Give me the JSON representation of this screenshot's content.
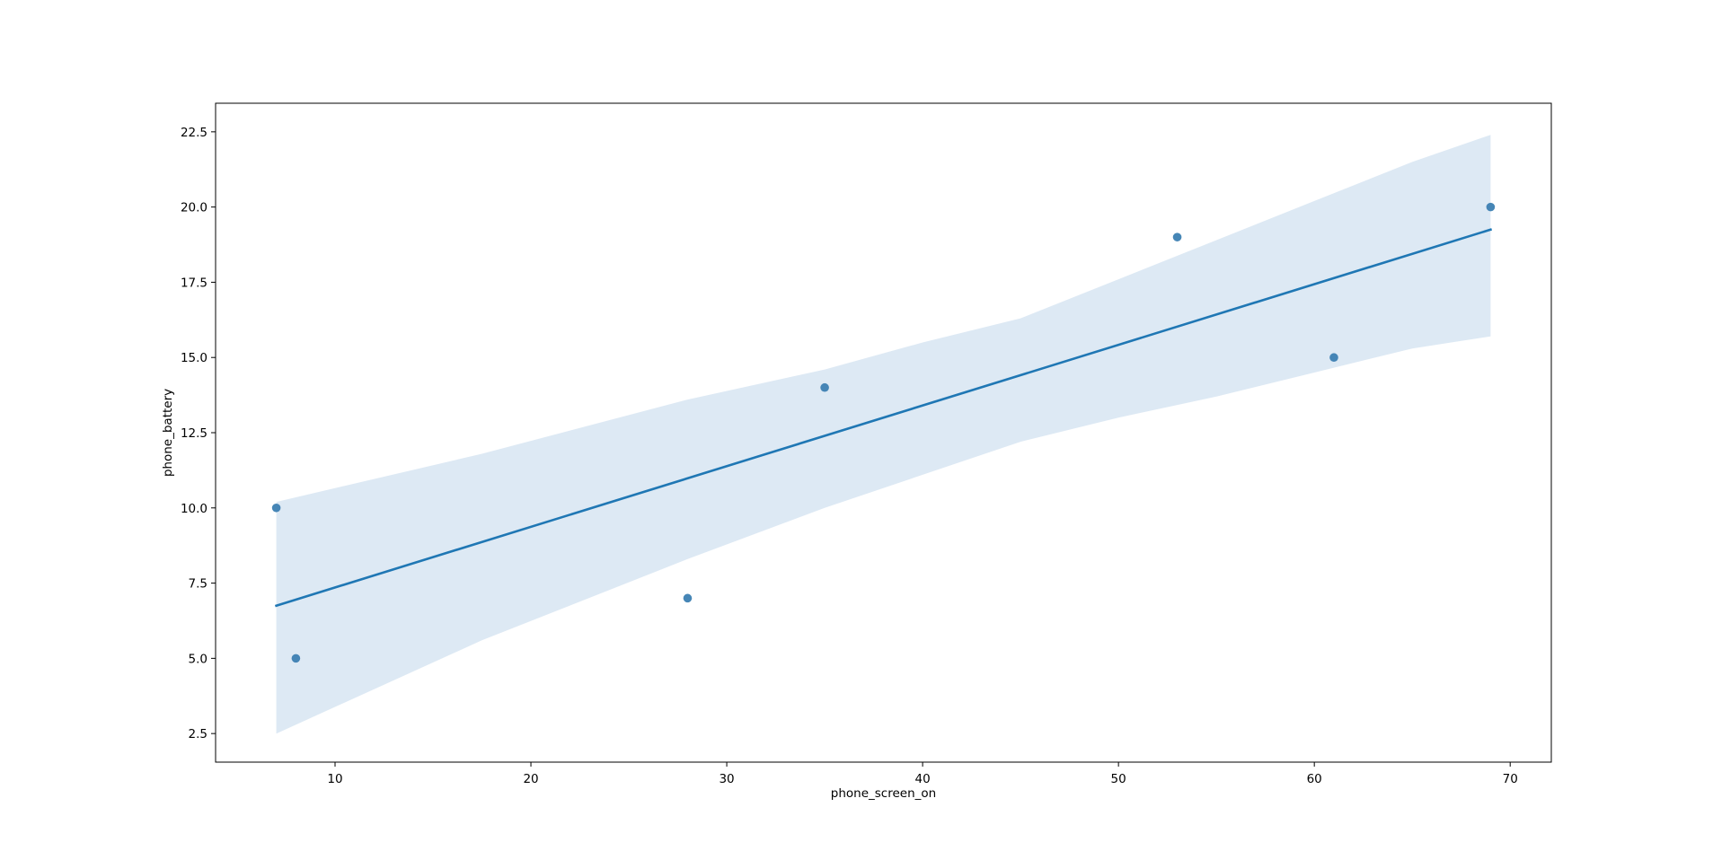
{
  "chart_data": {
    "type": "scatter",
    "xlabel": "phone_screen_on",
    "ylabel": "phone_battery",
    "xlim": [
      3.9,
      72.1
    ],
    "ylim": [
      1.55,
      23.45
    ],
    "xticks": [
      10,
      20,
      30,
      40,
      50,
      60,
      70
    ],
    "yticks": [
      2.5,
      5.0,
      7.5,
      10.0,
      12.5,
      15.0,
      17.5,
      20.0,
      22.5
    ],
    "xtick_labels": [
      "10",
      "20",
      "30",
      "40",
      "50",
      "60",
      "70"
    ],
    "ytick_labels": [
      "2.5",
      "5.0",
      "7.5",
      "10.0",
      "12.5",
      "15.0",
      "17.5",
      "20.0",
      "22.5"
    ],
    "grid": false,
    "points": [
      {
        "x": 7,
        "y": 10
      },
      {
        "x": 8,
        "y": 5
      },
      {
        "x": 28,
        "y": 7
      },
      {
        "x": 35,
        "y": 14
      },
      {
        "x": 53,
        "y": 19
      },
      {
        "x": 61,
        "y": 15
      },
      {
        "x": 69,
        "y": 20
      }
    ],
    "regression_line": {
      "x": [
        7,
        69
      ],
      "y": [
        6.75,
        19.25
      ]
    },
    "confidence_band": {
      "x": [
        7,
        17.5,
        28,
        35,
        40,
        45,
        50,
        55,
        60,
        65,
        69
      ],
      "lower": [
        2.5,
        5.6,
        8.3,
        10.0,
        11.1,
        12.2,
        13.0,
        13.7,
        14.5,
        15.3,
        15.7
      ],
      "upper": [
        10.2,
        11.8,
        13.6,
        14.6,
        15.5,
        16.3,
        17.6,
        18.9,
        20.2,
        21.5,
        22.4
      ]
    },
    "colors": {
      "points": "#3c7fb2",
      "line": "#1f77b4",
      "band": "#dde9f4",
      "axes": "#000000"
    }
  }
}
